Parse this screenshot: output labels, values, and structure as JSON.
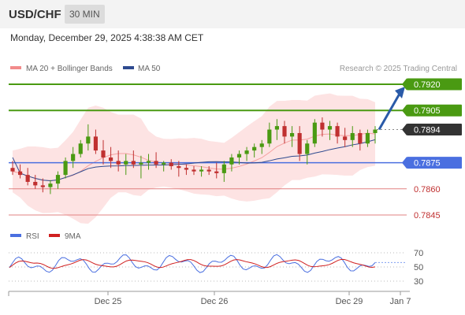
{
  "header": {
    "symbol": "USD/CHF",
    "interval": "30 MIN"
  },
  "datetime": "Monday, December 29, 2025 4:38:38 AM CET",
  "legend": {
    "bollinger": "MA 20 + Bollinger Bands",
    "ma50": "MA 50",
    "credit": "Research © 2025 Trading Central",
    "rsi": "RSI",
    "rsi_ma": "9MA"
  },
  "colors": {
    "resistance": "#4a9a12",
    "support": "#4a6fe0",
    "support_weak": "#e28080",
    "ma50": "#2e4a8f",
    "bollinger": "#f06060",
    "up": "#4a9a12",
    "down": "#c03030",
    "rsi": "#4a6fe0",
    "rsi_ma": "#d02020",
    "arrow": "#2a5aa8"
  },
  "chart_data": [
    {
      "type": "candlestick",
      "symbol": "USD/CHF",
      "interval": "30 MIN",
      "x_ticks": [
        "Dec 25",
        "Dec 26",
        "Dec 29",
        "Jan 7"
      ],
      "levels": [
        {
          "value": 0.792,
          "label": "0.7920",
          "kind": "resistance"
        },
        {
          "value": 0.7905,
          "label": "0.7905",
          "kind": "resistance"
        },
        {
          "value": 0.7894,
          "label": "0.7894",
          "kind": "last"
        },
        {
          "value": 0.7875,
          "label": "0.7875",
          "kind": "support"
        },
        {
          "value": 0.786,
          "label": "0.7860",
          "kind": "support"
        },
        {
          "value": 0.7845,
          "label": "0.7845",
          "kind": "support"
        }
      ],
      "ylim": [
        0.784,
        0.793
      ],
      "last_price": 0.7894,
      "target": 0.792,
      "ohlc": [
        [
          0.7872,
          0.7876,
          0.7868,
          0.787
        ],
        [
          0.787,
          0.7874,
          0.7866,
          0.7868
        ],
        [
          0.7868,
          0.7872,
          0.7862,
          0.7864
        ],
        [
          0.7864,
          0.7868,
          0.786,
          0.7862
        ],
        [
          0.7862,
          0.7866,
          0.7858,
          0.7861
        ],
        [
          0.7861,
          0.7865,
          0.7857,
          0.7863
        ],
        [
          0.7863,
          0.787,
          0.786,
          0.7868
        ],
        [
          0.7868,
          0.7878,
          0.7866,
          0.7876
        ],
        [
          0.7876,
          0.7884,
          0.7872,
          0.788
        ],
        [
          0.788,
          0.7888,
          0.7878,
          0.7886
        ],
        [
          0.7886,
          0.7897,
          0.7882,
          0.789
        ],
        [
          0.789,
          0.7894,
          0.788,
          0.7882
        ],
        [
          0.7882,
          0.7888,
          0.7874,
          0.7878
        ],
        [
          0.7878,
          0.7884,
          0.7872,
          0.7876
        ],
        [
          0.7876,
          0.7882,
          0.787,
          0.7874
        ],
        [
          0.7874,
          0.788,
          0.7868,
          0.7876
        ],
        [
          0.7876,
          0.7882,
          0.7872,
          0.7874
        ],
        [
          0.7874,
          0.7879,
          0.7866,
          0.7875
        ],
        [
          0.7875,
          0.788,
          0.7871,
          0.7876
        ],
        [
          0.7876,
          0.7881,
          0.7872,
          0.7874
        ],
        [
          0.7874,
          0.7876,
          0.787,
          0.7875
        ],
        [
          0.7875,
          0.7877,
          0.7871,
          0.7873
        ],
        [
          0.7873,
          0.7876,
          0.7867,
          0.7872
        ],
        [
          0.7872,
          0.7874,
          0.7868,
          0.7871
        ],
        [
          0.7871,
          0.7873,
          0.7868,
          0.787
        ],
        [
          0.787,
          0.7873,
          0.7867,
          0.7871
        ],
        [
          0.7871,
          0.7873,
          0.7868,
          0.787
        ],
        [
          0.787,
          0.7875,
          0.7866,
          0.7869
        ],
        [
          0.7869,
          0.7876,
          0.7864,
          0.7874
        ],
        [
          0.7874,
          0.788,
          0.787,
          0.7878
        ],
        [
          0.7878,
          0.7882,
          0.7874,
          0.788
        ],
        [
          0.788,
          0.7884,
          0.7876,
          0.7882
        ],
        [
          0.7882,
          0.7886,
          0.7878,
          0.7884
        ],
        [
          0.7884,
          0.7888,
          0.788,
          0.7886
        ],
        [
          0.7886,
          0.7898,
          0.7884,
          0.7894
        ],
        [
          0.7894,
          0.79,
          0.7888,
          0.7896
        ],
        [
          0.7896,
          0.7899,
          0.7886,
          0.789
        ],
        [
          0.789,
          0.7896,
          0.7884,
          0.7892
        ],
        [
          0.7892,
          0.7896,
          0.7876,
          0.788
        ],
        [
          0.788,
          0.7888,
          0.7874,
          0.7886
        ],
        [
          0.7886,
          0.79,
          0.7884,
          0.7898
        ],
        [
          0.7898,
          0.7901,
          0.789,
          0.7894
        ],
        [
          0.7894,
          0.7899,
          0.7888,
          0.7896
        ],
        [
          0.7896,
          0.7898,
          0.7886,
          0.789
        ],
        [
          0.789,
          0.7895,
          0.7884,
          0.7888
        ],
        [
          0.7888,
          0.7896,
          0.7884,
          0.7892
        ],
        [
          0.7892,
          0.7894,
          0.7882,
          0.7886
        ],
        [
          0.7886,
          0.7894,
          0.7884,
          0.7892
        ],
        [
          0.7892,
          0.7896,
          0.7886,
          0.7894
        ]
      ]
    },
    {
      "type": "line",
      "title": "RSI",
      "series": [
        {
          "name": "RSI"
        },
        {
          "name": "9MA"
        }
      ],
      "y_ticks": [
        70,
        50,
        30
      ],
      "ylim": [
        20,
        80
      ]
    }
  ]
}
